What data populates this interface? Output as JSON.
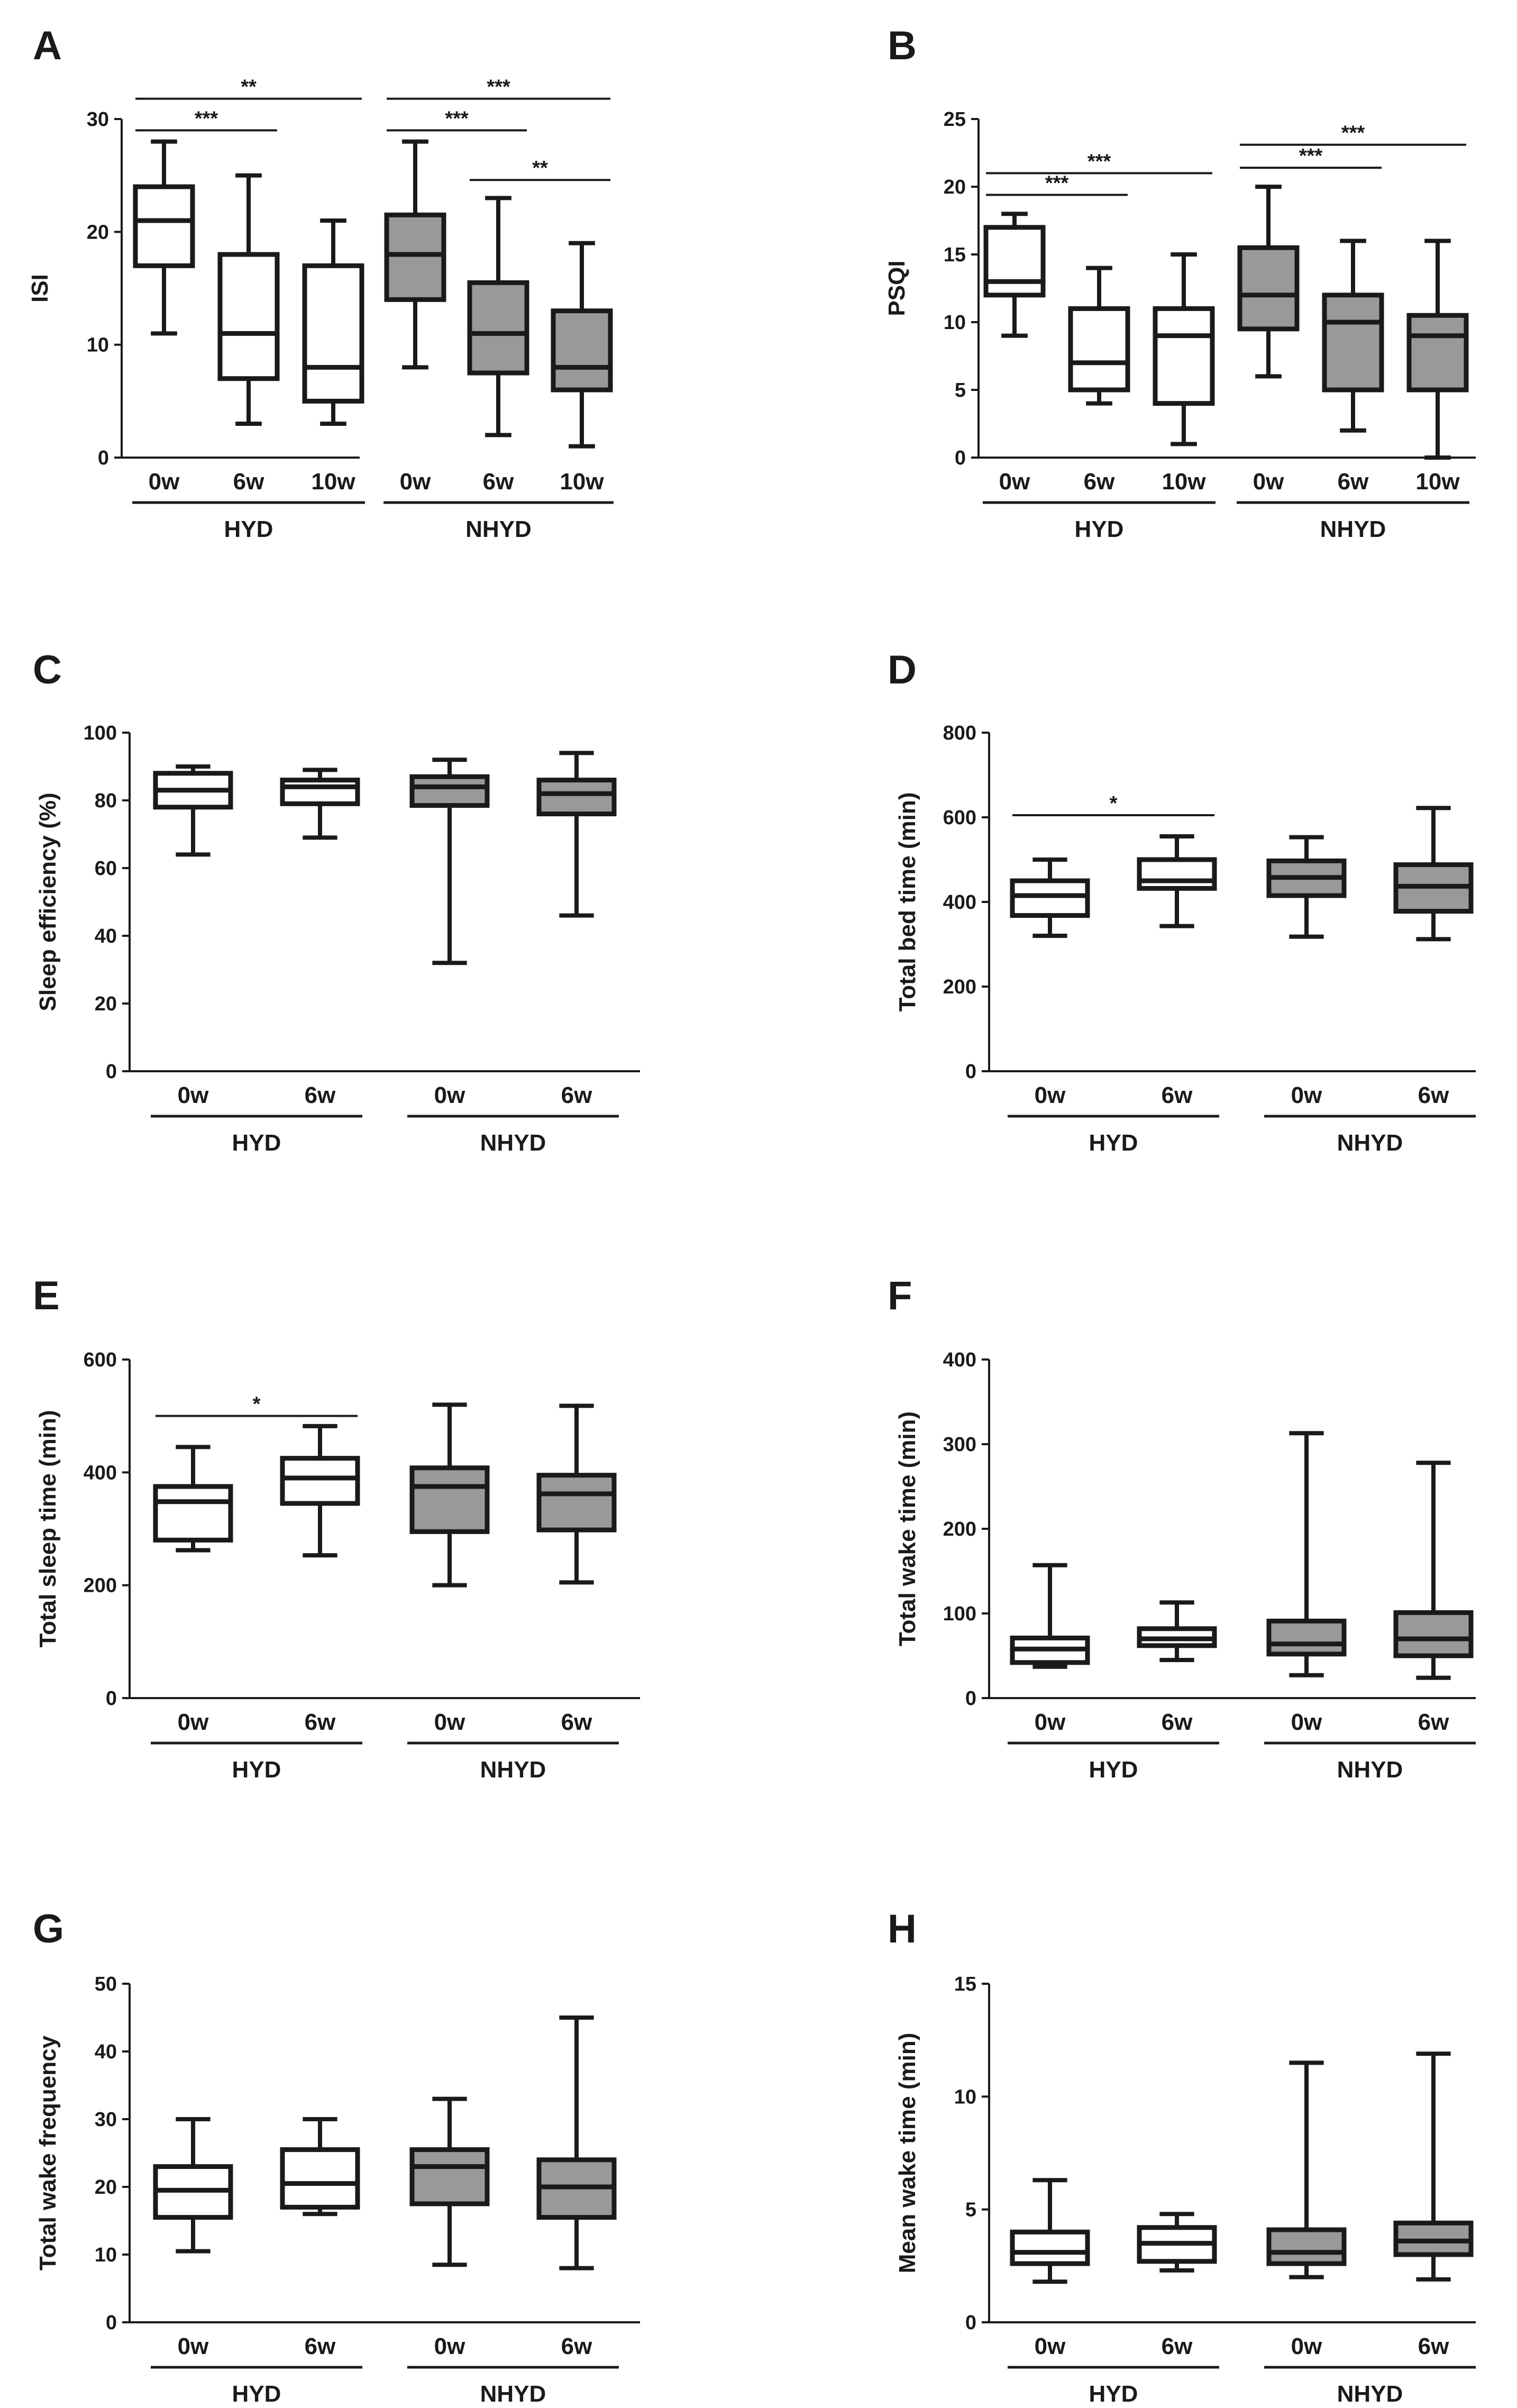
{
  "colors": {
    "hyd": "#ffffff",
    "nhyd": "#999999",
    "stroke": "#1a1a1a"
  },
  "chart_data": [
    {
      "panel": "A",
      "type": "boxplot",
      "ylabel": "ISI",
      "ylim": [
        0,
        30
      ],
      "yticks": [
        "0",
        "10",
        "20",
        "30"
      ],
      "categories": [
        "0w",
        "6w",
        "10w",
        "0w",
        "6w",
        "10w"
      ],
      "groups": [
        {
          "label": "HYD",
          "n": 3
        },
        {
          "label": "NHYD",
          "n": 3
        }
      ],
      "boxes": [
        {
          "min": 11,
          "q1": 17,
          "median": 21,
          "q3": 24,
          "max": 28,
          "group": "hyd"
        },
        {
          "min": 3,
          "q1": 7,
          "median": 11,
          "q3": 18,
          "max": 25,
          "group": "hyd"
        },
        {
          "min": 3,
          "q1": 5,
          "median": 8,
          "q3": 17,
          "max": 21,
          "group": "hyd"
        },
        {
          "min": 8,
          "q1": 14,
          "median": 18,
          "q3": 21.5,
          "max": 28,
          "group": "nhyd"
        },
        {
          "min": 2,
          "q1": 7.5,
          "median": 11,
          "q3": 15.5,
          "max": 23,
          "group": "nhyd"
        },
        {
          "min": 1,
          "q1": 6,
          "median": 8,
          "q3": 13,
          "max": 19,
          "group": "nhyd"
        }
      ],
      "significance": [
        {
          "from": 0,
          "to": 1,
          "level": 29,
          "label": "***"
        },
        {
          "from": 0,
          "to": 2,
          "level": 31.8,
          "label": "**"
        },
        {
          "from": 3,
          "to": 4,
          "level": 29,
          "label": "***"
        },
        {
          "from": 3,
          "to": 5,
          "level": 31.8,
          "label": "***"
        },
        {
          "from": 4,
          "to": 5,
          "level": 24.6,
          "label": "**"
        }
      ]
    },
    {
      "panel": "B",
      "type": "boxplot",
      "ylabel": "PSQI",
      "ylim": [
        0,
        25
      ],
      "yticks": [
        "0",
        "5",
        "10",
        "15",
        "20",
        "25"
      ],
      "categories": [
        "0w",
        "6w",
        "10w",
        "0w",
        "6w",
        "10w"
      ],
      "groups": [
        {
          "label": "HYD",
          "n": 3
        },
        {
          "label": "NHYD",
          "n": 3
        }
      ],
      "boxes": [
        {
          "min": 9,
          "q1": 12,
          "median": 13,
          "q3": 17,
          "max": 18,
          "group": "hyd"
        },
        {
          "min": 4,
          "q1": 5,
          "median": 7,
          "q3": 11,
          "max": 14,
          "group": "hyd"
        },
        {
          "min": 1,
          "q1": 4,
          "median": 9,
          "q3": 11,
          "max": 15,
          "group": "hyd"
        },
        {
          "min": 6,
          "q1": 9.5,
          "median": 12,
          "q3": 15.5,
          "max": 20,
          "group": "nhyd"
        },
        {
          "min": 2,
          "q1": 5,
          "median": 10,
          "q3": 12,
          "max": 16,
          "group": "nhyd"
        },
        {
          "min": 0,
          "q1": 5,
          "median": 9,
          "q3": 10.5,
          "max": 16,
          "group": "nhyd"
        }
      ],
      "significance": [
        {
          "from": 0,
          "to": 1,
          "level": 19.4,
          "label": "***"
        },
        {
          "from": 0,
          "to": 2,
          "level": 21,
          "label": "***"
        },
        {
          "from": 3,
          "to": 4,
          "level": 21.4,
          "label": "***"
        },
        {
          "from": 3,
          "to": 5,
          "level": 23.1,
          "label": "***"
        }
      ]
    },
    {
      "panel": "C",
      "type": "boxplot",
      "ylabel": "Sleep efficiency (%)",
      "ylim": [
        0,
        100
      ],
      "yticks": [
        "0",
        "20",
        "40",
        "60",
        "80",
        "100"
      ],
      "categories": [
        "0w",
        "6w",
        "0w",
        "6w"
      ],
      "groups": [
        {
          "label": "HYD",
          "n": 2
        },
        {
          "label": "NHYD",
          "n": 2
        }
      ],
      "boxes": [
        {
          "min": 64,
          "q1": 78,
          "median": 83,
          "q3": 88,
          "max": 90,
          "group": "hyd"
        },
        {
          "min": 69,
          "q1": 79,
          "median": 84,
          "q3": 86,
          "max": 89,
          "group": "hyd"
        },
        {
          "min": 32,
          "q1": 78.5,
          "median": 84,
          "q3": 87,
          "max": 92,
          "group": "nhyd"
        },
        {
          "min": 46,
          "q1": 76,
          "median": 82,
          "q3": 86,
          "max": 94,
          "group": "nhyd"
        }
      ],
      "significance": []
    },
    {
      "panel": "D",
      "type": "boxplot",
      "ylabel": "Total bed time (min)",
      "ylim": [
        0,
        800
      ],
      "yticks": [
        "0",
        "200",
        "400",
        "600",
        "800"
      ],
      "categories": [
        "0w",
        "6w",
        "0w",
        "6w"
      ],
      "groups": [
        {
          "label": "HYD",
          "n": 2
        },
        {
          "label": "NHYD",
          "n": 2
        }
      ],
      "boxes": [
        {
          "min": 320,
          "q1": 368,
          "median": 415,
          "q3": 450,
          "max": 500,
          "group": "hyd"
        },
        {
          "min": 343,
          "q1": 432,
          "median": 450,
          "q3": 500,
          "max": 555,
          "group": "hyd"
        },
        {
          "min": 318,
          "q1": 415,
          "median": 458,
          "q3": 497,
          "max": 553,
          "group": "nhyd"
        },
        {
          "min": 312,
          "q1": 378,
          "median": 437,
          "q3": 488,
          "max": 622,
          "group": "nhyd"
        }
      ],
      "significance": [
        {
          "from": 0,
          "to": 1,
          "level": 605,
          "label": "*"
        }
      ]
    },
    {
      "panel": "E",
      "type": "boxplot",
      "ylabel": "Total sleep time (min)",
      "ylim": [
        0,
        600
      ],
      "yticks": [
        "0",
        "200",
        "400",
        "600"
      ],
      "categories": [
        "0w",
        "6w",
        "0w",
        "6w"
      ],
      "groups": [
        {
          "label": "HYD",
          "n": 2
        },
        {
          "label": "NHYD",
          "n": 2
        }
      ],
      "boxes": [
        {
          "min": 262,
          "q1": 280,
          "median": 348,
          "q3": 375,
          "max": 445,
          "group": "hyd"
        },
        {
          "min": 253,
          "q1": 345,
          "median": 390,
          "q3": 425,
          "max": 482,
          "group": "hyd"
        },
        {
          "min": 200,
          "q1": 295,
          "median": 375,
          "q3": 408,
          "max": 520,
          "group": "nhyd"
        },
        {
          "min": 205,
          "q1": 298,
          "median": 362,
          "q3": 395,
          "max": 518,
          "group": "nhyd"
        }
      ],
      "significance": [
        {
          "from": 0,
          "to": 1,
          "level": 500,
          "label": "*"
        }
      ]
    },
    {
      "panel": "F",
      "type": "boxplot",
      "ylabel": "Total wake time (min)",
      "ylim": [
        0,
        400
      ],
      "yticks": [
        "0",
        "100",
        "200",
        "300",
        "400"
      ],
      "categories": [
        "0w",
        "6w",
        "0w",
        "6w"
      ],
      "groups": [
        {
          "label": "HYD",
          "n": 2
        },
        {
          "label": "NHYD",
          "n": 2
        }
      ],
      "boxes": [
        {
          "min": 37,
          "q1": 42,
          "median": 58,
          "q3": 71,
          "max": 157,
          "group": "hyd"
        },
        {
          "min": 45,
          "q1": 62,
          "median": 70,
          "q3": 82,
          "max": 113,
          "group": "hyd"
        },
        {
          "min": 27,
          "q1": 52,
          "median": 64,
          "q3": 91,
          "max": 313,
          "group": "nhyd"
        },
        {
          "min": 24,
          "q1": 50,
          "median": 70,
          "q3": 101,
          "max": 278,
          "group": "nhyd"
        }
      ],
      "significance": []
    },
    {
      "panel": "G",
      "type": "boxplot",
      "ylabel": "Total wake frequency",
      "ylim": [
        0,
        50
      ],
      "yticks": [
        "0",
        "10",
        "20",
        "30",
        "40",
        "50"
      ],
      "categories": [
        "0w",
        "6w",
        "0w",
        "6w"
      ],
      "groups": [
        {
          "label": "HYD",
          "n": 2
        },
        {
          "label": "NHYD",
          "n": 2
        }
      ],
      "boxes": [
        {
          "min": 10.5,
          "q1": 15.5,
          "median": 19.5,
          "q3": 23,
          "max": 30,
          "group": "hyd"
        },
        {
          "min": 16,
          "q1": 17,
          "median": 20.5,
          "q3": 25.5,
          "max": 30,
          "group": "hyd"
        },
        {
          "min": 8.5,
          "q1": 17.5,
          "median": 23,
          "q3": 25.5,
          "max": 33,
          "group": "nhyd"
        },
        {
          "min": 8,
          "q1": 15.5,
          "median": 20,
          "q3": 24,
          "max": 45,
          "group": "nhyd"
        }
      ],
      "significance": []
    },
    {
      "panel": "H",
      "type": "boxplot",
      "ylabel": "Mean wake time (min)",
      "ylim": [
        0,
        15
      ],
      "yticks": [
        "0",
        "5",
        "10",
        "15"
      ],
      "categories": [
        "0w",
        "6w",
        "0w",
        "6w"
      ],
      "groups": [
        {
          "label": "HYD",
          "n": 2
        },
        {
          "label": "NHYD",
          "n": 2
        }
      ],
      "boxes": [
        {
          "min": 1.8,
          "q1": 2.6,
          "median": 3.1,
          "q3": 4,
          "max": 6.3,
          "group": "hyd"
        },
        {
          "min": 2.3,
          "q1": 2.7,
          "median": 3.5,
          "q3": 4.2,
          "max": 4.8,
          "group": "hyd"
        },
        {
          "min": 2,
          "q1": 2.6,
          "median": 3.1,
          "q3": 4.1,
          "max": 11.5,
          "group": "nhyd"
        },
        {
          "min": 1.9,
          "q1": 3,
          "median": 3.6,
          "q3": 4.4,
          "max": 11.9,
          "group": "nhyd"
        }
      ],
      "significance": []
    }
  ]
}
